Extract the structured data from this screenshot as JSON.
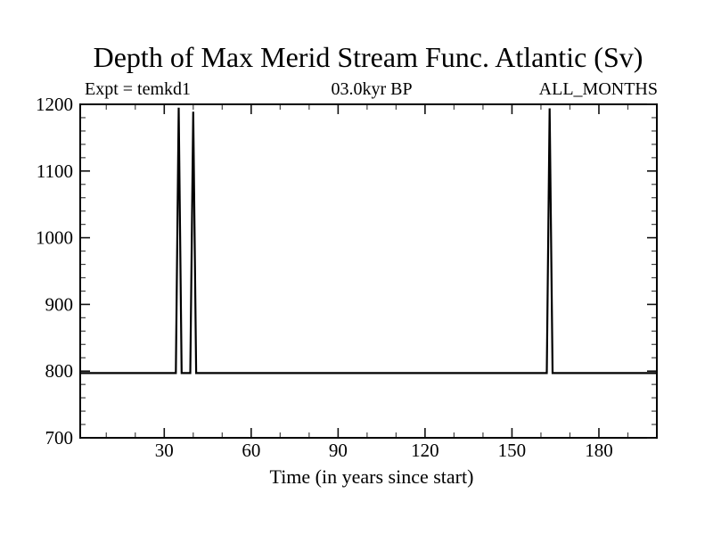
{
  "page": {
    "background_color": "#ffffff",
    "foreground_color": "#000000"
  },
  "header": {
    "title": "Depth of Max Merid Stream Func. Atlantic (Sv)",
    "experiment_label": "Expt = temkd1",
    "epoch_label": "03.0kyr BP",
    "months_label": "ALL_MONTHS"
  },
  "chart_data": {
    "type": "line",
    "title": "Depth of Max Merid Stream Func. Atlantic (Sv)",
    "subtitle_left": "Expt = temkd1",
    "subtitle_center": "03.0kyr BP",
    "subtitle_right": "ALL_MONTHS",
    "xlabel": "Time (in years since start)",
    "ylabel": "",
    "xlim": [
      1,
      200
    ],
    "ylim": [
      700,
      1200
    ],
    "x_major_ticks": [
      30,
      60,
      90,
      120,
      150,
      180
    ],
    "x_minor_step": 10,
    "y_major_ticks": [
      700,
      800,
      900,
      1000,
      1100,
      1200
    ],
    "y_minor_step": 20,
    "grid": false,
    "legend": null,
    "tick_style": "inward-all-four-sides",
    "line_color": "#000000",
    "background_color": "#ffffff",
    "series": [
      {
        "name": "depth-of-max-meridional-streamfunction",
        "baseline_value": 797,
        "spike_years": [
          35,
          40,
          163
        ],
        "spike_values": [
          1195,
          1189,
          1194
        ],
        "points": [
          [
            1,
            797
          ],
          [
            34,
            797
          ],
          [
            35,
            1195
          ],
          [
            36,
            797
          ],
          [
            39,
            797
          ],
          [
            40,
            1189
          ],
          [
            41,
            797
          ],
          [
            162,
            797
          ],
          [
            163,
            1194
          ],
          [
            164,
            797
          ],
          [
            200,
            797
          ]
        ]
      }
    ]
  }
}
